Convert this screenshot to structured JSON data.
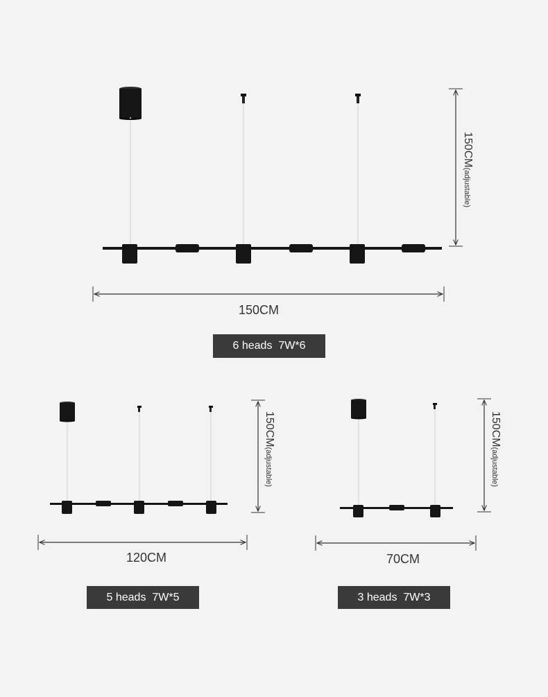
{
  "colors": {
    "background": "#f3f3f3",
    "fixture": "#151515",
    "wire": "#cfcfcf",
    "dimension": "#333333",
    "badge": "#3a3a3a",
    "badge_text": "#ffffff"
  },
  "products": [
    {
      "heads": 6,
      "width_label": "150CM",
      "height_main": "150CM",
      "height_note": "(adjustable)",
      "badge_text": "6 heads  7W*6"
    },
    {
      "heads": 5,
      "width_label": "120CM",
      "height_main": "150CM",
      "height_note": "(adjustable)",
      "badge_text": "5 heads  7W*5"
    },
    {
      "heads": 3,
      "width_label": "70CM",
      "height_main": "150CM",
      "height_note": "(adjustable)",
      "badge_text": "3 heads  7W*3"
    }
  ]
}
